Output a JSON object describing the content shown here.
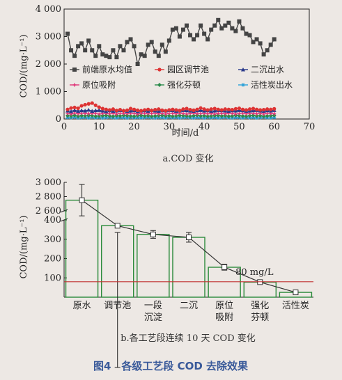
{
  "figure_title": "图4　各级工艺段 COD 去除效果",
  "chart_data": [
    {
      "type": "line",
      "caption": "a.COD 变化",
      "xlabel": "时间/d",
      "ylabel": "COD/(mg·L⁻¹)",
      "xlim": [
        0,
        70
      ],
      "ylim": [
        0,
        4000
      ],
      "xticks": [
        0,
        10,
        20,
        30,
        40,
        50,
        60,
        70
      ],
      "yticks": [
        0,
        1000,
        2000,
        3000,
        4000
      ],
      "ytick_labels": [
        "0",
        "1 000",
        "2 000",
        "3 000",
        "4 000"
      ],
      "legend_placement": "center",
      "series": [
        {
          "name": "前端原水均值",
          "color": "#444444",
          "marker": "square",
          "y": [
            3100,
            2500,
            2300,
            2650,
            2750,
            2500,
            2850,
            2500,
            2300,
            2650,
            2350,
            2300,
            2250,
            2500,
            2250,
            2650,
            2500,
            2800,
            2900,
            2650,
            2000,
            2350,
            2300,
            2700,
            2800,
            2450,
            2300,
            2700,
            2450,
            2850,
            3250,
            3300,
            3000,
            3250,
            3400,
            3050,
            2900,
            3050,
            3400,
            3100,
            2900,
            3250,
            3400,
            3600,
            3300,
            3400,
            3500,
            3300,
            3200,
            3550,
            3300,
            3100,
            3050,
            2800,
            2900,
            2750,
            2350,
            2500,
            2700,
            2900
          ]
        },
        {
          "name": "园区调节池",
          "color": "#dd3333",
          "marker": "circle",
          "y": [
            350,
            400,
            420,
            390,
            480,
            520,
            550,
            580,
            500,
            430,
            380,
            350,
            330,
            360,
            310,
            340,
            300,
            320,
            380,
            350,
            320,
            300,
            330,
            350,
            310,
            340,
            360,
            320,
            300,
            330,
            350,
            330,
            310,
            360,
            380,
            340,
            320,
            350,
            400,
            360,
            330,
            360,
            380,
            350,
            330,
            360,
            350,
            340,
            370,
            390,
            350,
            330,
            360,
            380,
            350,
            330,
            340,
            360,
            350,
            370
          ]
        },
        {
          "name": "二沉出水",
          "color": "#2a3a8a",
          "marker": "triangle",
          "y": [
            300,
            280,
            320,
            290,
            310,
            300,
            330,
            290,
            310,
            320,
            300,
            280,
            310,
            290,
            300,
            320,
            310,
            290,
            300,
            310,
            280,
            300,
            310,
            290,
            320,
            300,
            290,
            310,
            300,
            320,
            310,
            290,
            300,
            320,
            310,
            300,
            290,
            310,
            320,
            300,
            310,
            290,
            300,
            320,
            310,
            300,
            290,
            310,
            300,
            320,
            310,
            290,
            300,
            310,
            320,
            300,
            290,
            310,
            300,
            320
          ]
        },
        {
          "name": "原位吸附",
          "color": "#e03377",
          "marker": "cross",
          "y": [
            200,
            180,
            220,
            190,
            210,
            200,
            190,
            210,
            200,
            180,
            200,
            210,
            190,
            200,
            180,
            210,
            200,
            190,
            210,
            200,
            180,
            200,
            210,
            190,
            200,
            210,
            190,
            200,
            180,
            210,
            200,
            190,
            210,
            200,
            180,
            200,
            210,
            190,
            200,
            210,
            190,
            200,
            180,
            210,
            200,
            190,
            210,
            200,
            180,
            200,
            210,
            190,
            200,
            210,
            190,
            200,
            180,
            210,
            200,
            190
          ]
        },
        {
          "name": "强化芬顿",
          "color": "#2a8a4a",
          "marker": "diamond",
          "y": [
            120,
            110,
            130,
            100,
            120,
            110,
            130,
            120,
            100,
            110,
            120,
            130,
            110,
            100,
            120,
            110,
            130,
            120,
            110,
            100,
            120,
            130,
            110,
            120,
            100,
            110,
            120,
            130,
            110,
            120,
            100,
            110,
            130,
            120,
            110,
            100,
            120,
            130,
            110,
            120,
            100,
            110,
            120,
            130,
            110,
            120,
            100,
            110,
            130,
            120,
            110,
            100,
            120,
            130,
            110,
            120,
            100,
            110,
            120,
            130
          ]
        },
        {
          "name": "活性炭出水",
          "color": "#2aa0d8",
          "marker": "star",
          "y": [
            60,
            50,
            70,
            40,
            55,
            60,
            45,
            65,
            50,
            60,
            40,
            55,
            70,
            50,
            45,
            60,
            55,
            40,
            65,
            50,
            60,
            45,
            55,
            70,
            50,
            40,
            60,
            55,
            45,
            65,
            50,
            60,
            40,
            55,
            70,
            50,
            45,
            60,
            55,
            40,
            65,
            50,
            60,
            45,
            55,
            70,
            50,
            40,
            60,
            55,
            45,
            65,
            50,
            60,
            40,
            55,
            70,
            50,
            45,
            60
          ]
        }
      ]
    },
    {
      "type": "bar",
      "caption": "b.各工艺段连续 10 天 COD 变化",
      "ylabel": "COD/(mg·L⁻¹)",
      "y_axis_break": true,
      "yticks_upper": [
        2600,
        2800,
        3000
      ],
      "ytick_labels_upper": [
        "2 600",
        "2 800",
        "3 000"
      ],
      "yticks_lower": [
        0,
        100,
        200,
        300,
        400
      ],
      "categories": [
        "原水",
        "调节池",
        "一段沉淀",
        "二沉",
        "原位吸附",
        "强化芬顿",
        "活性炭"
      ],
      "category_lines": [
        [
          "原水"
        ],
        [
          "调节池"
        ],
        [
          "一段",
          "沉淀"
        ],
        [
          "二沉"
        ],
        [
          "原位",
          "吸附"
        ],
        [
          "强化",
          "芬顿"
        ],
        [
          "活性炭"
        ]
      ],
      "values": [
        2750,
        370,
        325,
        310,
        155,
        78,
        25
      ],
      "errors": [
        220,
        35,
        20,
        25,
        15,
        5,
        5
      ],
      "bar_color": "#2a8a3a",
      "reference_line": {
        "value": 80,
        "label": "80 mg/L",
        "color": "#c23030"
      }
    }
  ]
}
